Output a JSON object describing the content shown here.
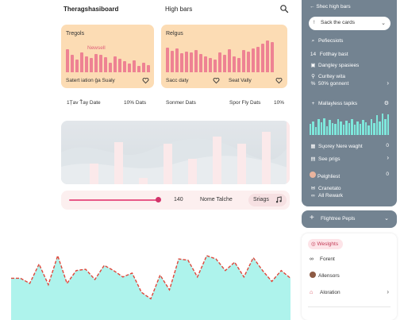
{
  "header": {
    "title": "Theragshasiboard",
    "subtitle": "High bars",
    "search_icon": "search-icon"
  },
  "cards": [
    {
      "label": "Tregols",
      "badge": "Newsell",
      "footer_left": "Satert iation ĝa Sualy",
      "bars": [
        0.72,
        0.55,
        0.4,
        0.62,
        0.5,
        0.45,
        0.58,
        0.55,
        0.48,
        0.3,
        0.5,
        0.42,
        0.35,
        0.28,
        0.38,
        0.2,
        0.3,
        0.22
      ]
    },
    {
      "label": "Relgus",
      "footer_left": "Sacc daty",
      "footer_right": "Seat Vally",
      "bars": [
        0.78,
        0.68,
        0.74,
        0.6,
        0.66,
        0.62,
        0.7,
        0.58,
        0.5,
        0.46,
        0.4,
        0.62,
        0.56,
        0.72,
        0.5,
        0.45,
        0.7,
        0.64,
        0.75,
        0.8,
        0.9,
        1.0,
        0.96
      ]
    }
  ],
  "stats_row": [
    "1Țav Ťay Date",
    "10% Dats",
    "Sonmer Dats",
    "Spor Fly Dats",
    "10%"
  ],
  "mid_panel": {
    "bars": [
      0.32,
      0.66,
      0.1,
      0.64,
      0.4,
      0.75,
      0.64,
      0.82,
      1.0
    ]
  },
  "slider": {
    "value": "140",
    "name": "Nome Talche",
    "pill_label": "Sriags",
    "level": 0.82
  },
  "area_chart": {
    "y": [
      0.6,
      0.6,
      0.52,
      0.82,
      0.5,
      0.95,
      0.52,
      0.72,
      0.74,
      0.58,
      0.8,
      0.72,
      0.62,
      0.68,
      0.38,
      0.28,
      0.65,
      0.42,
      0.9,
      0.88,
      0.62,
      0.95,
      0.9,
      0.72,
      0.85,
      0.62,
      0.92,
      0.72,
      0.55,
      0.72,
      0.6
    ]
  },
  "sidebar": {
    "back_label": "Shec high bars",
    "search_label": "Sack the cards",
    "items": [
      {
        "icon": "search-icon",
        "label": "Pefiecsiots"
      },
      {
        "icon": "number-icon",
        "label": "Fotthay bast",
        "prefix": "14"
      },
      {
        "icon": "box-icon",
        "label": "Dangley spasiees"
      },
      {
        "icon": "user-icon",
        "label": "Curltey wita"
      },
      {
        "icon": "percent-icon",
        "label": "50% gonnent",
        "chevron": true
      }
    ],
    "chart_label": "Mallayless tapiks",
    "bars": [
      0.5,
      0.62,
      0.35,
      0.7,
      0.58,
      0.75,
      0.4,
      0.68,
      0.55,
      0.5,
      0.72,
      0.6,
      0.45,
      0.65,
      0.55,
      0.72,
      0.45,
      0.62,
      0.5,
      0.68,
      0.58,
      0.42,
      0.7,
      0.55,
      0.88,
      0.6,
      0.95,
      0.7,
      0.92
    ],
    "lower_items": [
      {
        "icon": "calendar-icon",
        "label": "Sųorey Nere waght",
        "num": "0"
      },
      {
        "icon": "document-icon",
        "label": "See prigs",
        "chevron": true
      },
      {
        "icon": "avatar",
        "label": "Pelghliest",
        "num": "0"
      },
      {
        "icon": "mail-icon",
        "label": "Cranetato"
      },
      {
        "icon": "link-icon",
        "label": "All Rewark"
      }
    ],
    "filter_label": "Flightree Pepls",
    "card": {
      "chip": "Weslghts",
      "items": [
        {
          "icon": "link-icon",
          "label": "Forent"
        },
        {
          "icon": "avatar",
          "label": "Allensors"
        },
        {
          "icon": "home-icon",
          "label": "Aloration",
          "chevron": true
        }
      ]
    }
  },
  "colors": {
    "accent_pink": "#ee8293",
    "peach": "#fcdcb4",
    "sidebar": "#738391",
    "teal": "#7ee8dc",
    "area_fill": "#aef3ec",
    "area_line": "#e0463a"
  }
}
